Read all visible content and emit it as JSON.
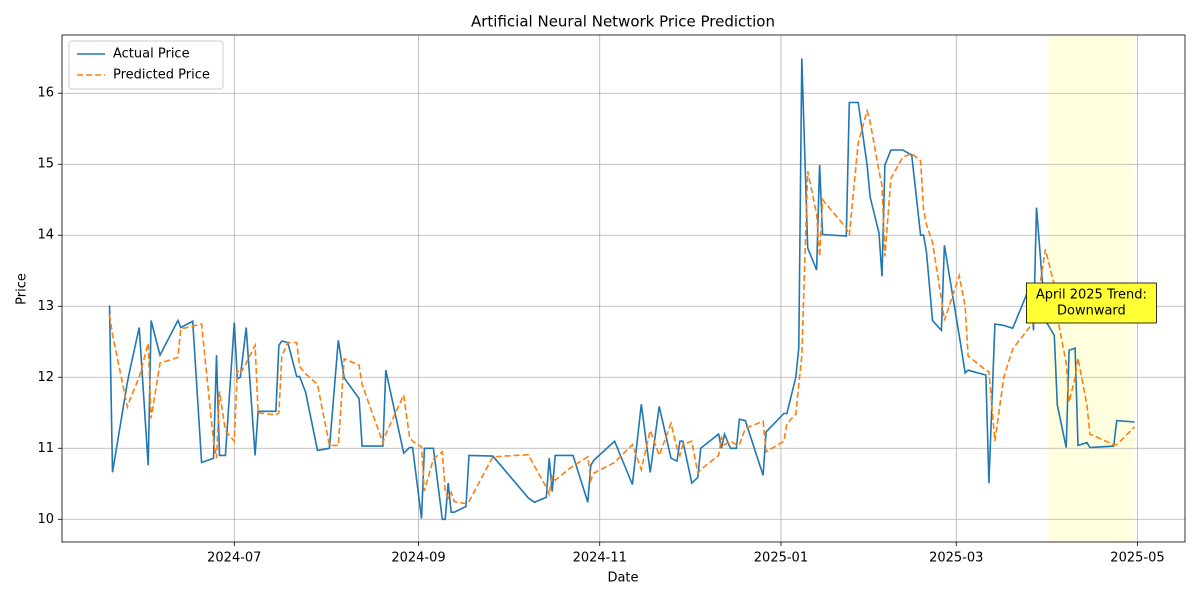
{
  "chart_data": {
    "type": "line",
    "title": "Artificial Neural Network Price Prediction",
    "x_label": "Date",
    "y_label": "Price",
    "x": [
      "2024-05-20",
      "2024-05-21",
      "2024-05-26",
      "2024-05-27",
      "2024-05-30",
      "2024-06-02",
      "2024-06-03",
      "2024-06-06",
      "2024-06-12",
      "2024-06-13",
      "2024-06-17",
      "2024-06-20",
      "2024-06-24",
      "2024-06-25",
      "2024-06-26",
      "2024-06-28",
      "2024-07-01",
      "2024-07-02",
      "2024-07-03",
      "2024-07-05",
      "2024-07-08",
      "2024-07-09",
      "2024-07-15",
      "2024-07-16",
      "2024-07-17",
      "2024-07-19",
      "2024-07-22",
      "2024-07-23",
      "2024-07-25",
      "2024-07-29",
      "2024-08-02",
      "2024-08-05",
      "2024-08-07",
      "2024-08-12",
      "2024-08-13",
      "2024-08-20",
      "2024-08-21",
      "2024-08-27",
      "2024-08-29",
      "2024-08-30",
      "2024-09-02",
      "2024-09-03",
      "2024-09-06",
      "2024-09-09",
      "2024-09-10",
      "2024-09-11",
      "2024-09-12",
      "2024-09-13",
      "2024-09-17",
      "2024-09-18",
      "2024-09-26",
      "2024-10-08",
      "2024-10-10",
      "2024-10-14",
      "2024-10-15",
      "2024-10-16",
      "2024-10-17",
      "2024-10-23",
      "2024-10-28",
      "2024-10-29",
      "2024-10-30",
      "2024-11-06",
      "2024-11-12",
      "2024-11-15",
      "2024-11-18",
      "2024-11-21",
      "2024-11-25",
      "2024-11-27",
      "2024-11-28",
      "2024-11-29",
      "2024-12-02",
      "2024-12-04",
      "2024-12-05",
      "2024-12-11",
      "2024-12-12",
      "2024-12-13",
      "2024-12-15",
      "2024-12-17",
      "2024-12-18",
      "2024-12-20",
      "2024-12-26",
      "2024-12-27",
      "2025-01-02",
      "2025-01-03",
      "2025-01-06",
      "2025-01-07",
      "2025-01-08",
      "2025-01-10",
      "2025-01-13",
      "2025-01-14",
      "2025-01-15",
      "2025-01-23",
      "2025-01-24",
      "2025-01-27",
      "2025-01-30",
      "2025-01-31",
      "2025-02-03",
      "2025-02-04",
      "2025-02-05",
      "2025-02-07",
      "2025-02-11",
      "2025-02-14",
      "2025-02-17",
      "2025-02-18",
      "2025-02-19",
      "2025-02-21",
      "2025-02-24",
      "2025-02-25",
      "2025-03-02",
      "2025-03-04",
      "2025-03-05",
      "2025-03-11",
      "2025-03-12",
      "2025-03-14",
      "2025-03-17",
      "2025-03-20",
      "2025-03-26",
      "2025-03-27",
      "2025-03-28",
      "2025-03-31",
      "2025-04-03",
      "2025-04-04",
      "2025-04-07",
      "2025-04-08",
      "2025-04-10",
      "2025-04-11",
      "2025-04-14",
      "2025-04-15",
      "2025-04-23",
      "2025-04-24",
      "2025-04-30"
    ],
    "series": [
      {
        "name": "Actual Price",
        "color": "#1f77b4",
        "dashed": false,
        "values": [
          13.01,
          10.66,
          11.93,
          12.13,
          12.7,
          10.76,
          12.8,
          12.31,
          12.8,
          12.7,
          12.79,
          10.8,
          10.86,
          12.31,
          10.9,
          10.9,
          12.77,
          11.98,
          12.0,
          12.7,
          10.9,
          11.52,
          11.52,
          12.45,
          12.51,
          12.49,
          12.01,
          12.01,
          11.79,
          10.97,
          11.0,
          12.52,
          11.99,
          11.7,
          11.03,
          11.03,
          12.1,
          10.93,
          11.01,
          11.01,
          10.01,
          11.0,
          11.0,
          10.0,
          10.0,
          10.51,
          10.1,
          10.1,
          10.18,
          10.9,
          10.89,
          10.3,
          10.24,
          10.31,
          10.86,
          10.39,
          10.9,
          10.9,
          10.24,
          10.76,
          10.83,
          11.1,
          10.49,
          11.62,
          10.66,
          11.59,
          10.86,
          10.82,
          11.1,
          11.1,
          10.51,
          10.59,
          11.0,
          11.2,
          11.0,
          11.2,
          11.0,
          11.0,
          11.41,
          11.39,
          10.62,
          11.23,
          11.49,
          11.49,
          12.0,
          12.42,
          16.49,
          13.82,
          13.51,
          14.99,
          14.01,
          13.99,
          15.87,
          15.87,
          14.99,
          14.54,
          14.03,
          13.42,
          14.99,
          15.2,
          15.2,
          15.13,
          14.0,
          14.0,
          13.76,
          12.8,
          12.66,
          13.86,
          12.59,
          12.06,
          12.1,
          12.03,
          10.51,
          12.75,
          12.73,
          12.69,
          13.3,
          12.66,
          14.39,
          12.8,
          12.59,
          11.61,
          11.01,
          12.38,
          12.41,
          11.04,
          11.08,
          11.01,
          11.03,
          11.39,
          11.37
        ]
      },
      {
        "name": "Predicted Price",
        "color": "#ff7f0e",
        "dashed": true,
        "values": [
          12.88,
          12.6,
          11.58,
          11.7,
          12.0,
          12.48,
          11.42,
          12.2,
          12.28,
          12.68,
          12.72,
          12.75,
          11.1,
          10.86,
          11.8,
          11.25,
          11.1,
          12.1,
          12.05,
          12.2,
          12.45,
          11.5,
          11.47,
          11.5,
          12.3,
          12.49,
          12.49,
          12.15,
          12.05,
          11.9,
          11.04,
          11.04,
          12.26,
          12.17,
          11.9,
          11.08,
          11.2,
          11.75,
          11.15,
          11.1,
          11.02,
          10.4,
          10.85,
          10.95,
          10.4,
          10.3,
          10.38,
          10.25,
          10.22,
          10.25,
          10.88,
          10.91,
          10.75,
          10.45,
          10.35,
          10.6,
          10.55,
          10.75,
          10.88,
          10.55,
          10.65,
          10.8,
          11.05,
          10.7,
          11.25,
          10.9,
          11.35,
          11.0,
          10.9,
          11.05,
          11.1,
          10.65,
          10.7,
          10.9,
          11.15,
          11.05,
          11.1,
          11.05,
          11.05,
          11.28,
          11.38,
          10.95,
          11.1,
          11.35,
          11.48,
          11.9,
          12.3,
          14.9,
          14.3,
          13.7,
          14.5,
          14.1,
          14.0,
          15.3,
          15.75,
          15.6,
          14.9,
          14.7,
          13.7,
          14.8,
          15.1,
          15.15,
          15.05,
          14.35,
          14.15,
          13.9,
          13.1,
          12.8,
          13.43,
          13.0,
          12.3,
          12.1,
          12.08,
          11.1,
          12.0,
          12.4,
          12.72,
          12.75,
          13.0,
          13.8,
          13.3,
          12.85,
          12.2,
          11.65,
          12.0,
          12.27,
          11.6,
          11.2,
          11.05,
          11.05,
          11.3
        ]
      }
    ],
    "xlim": [
      "2024-05-04",
      "2025-05-17"
    ],
    "xticks": [
      "2024-07",
      "2024-09",
      "2024-11",
      "2025-01",
      "2025-03",
      "2025-05"
    ],
    "ylim": [
      9.68,
      16.82
    ],
    "yticks": [
      10,
      11,
      12,
      13,
      14,
      15,
      16
    ],
    "grid": true,
    "legend": "upper-left",
    "highlight": {
      "start": "2025-04-01",
      "end": "2025-04-30",
      "color": "#ffffe0"
    },
    "annotation": {
      "lines": [
        "April 2025 Trend:",
        "Downward"
      ],
      "color": "#ffff33"
    }
  }
}
